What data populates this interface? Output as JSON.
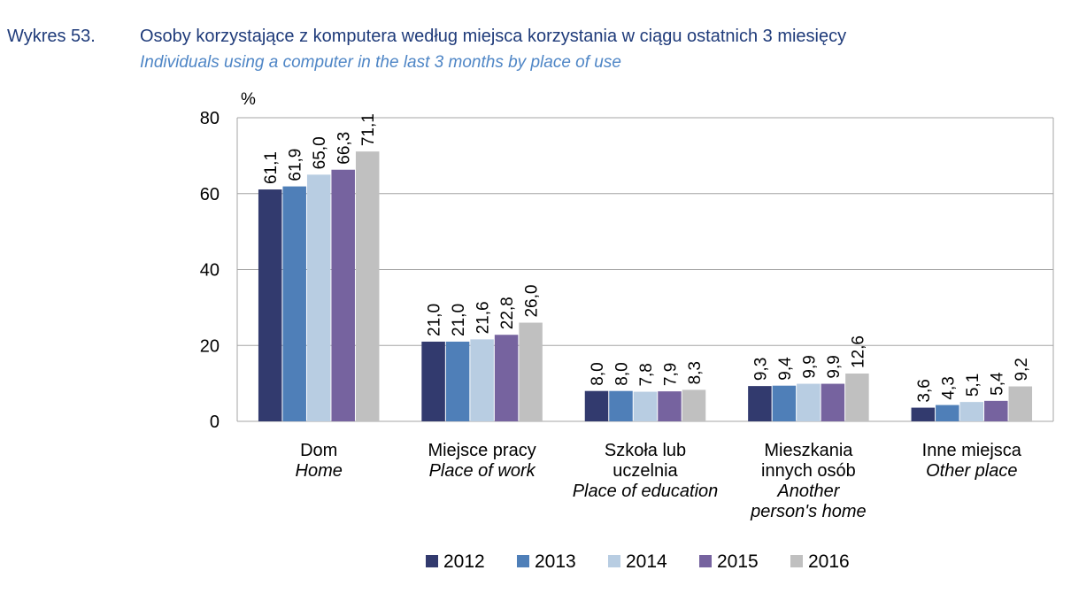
{
  "header": {
    "number": "Wykres 53.",
    "title": "Osoby korzystające z komputera według miejsca korzystania w ciągu ostatnich 3 miesięcy",
    "subtitle": "Individuals using a computer in the last 3 months by place of use"
  },
  "chart_data": {
    "type": "bar",
    "ylabel": "%",
    "ylim": [
      0,
      80
    ],
    "yticks": [
      "0",
      "20",
      "40",
      "60",
      "80"
    ],
    "grid": true,
    "legend_position": "bottom",
    "categories": [
      {
        "pl": [
          "Dom"
        ],
        "en": [
          "Home"
        ]
      },
      {
        "pl": [
          "Miejsce pracy"
        ],
        "en": [
          "Place of work"
        ]
      },
      {
        "pl": [
          "Szkoła lub",
          "uczelnia"
        ],
        "en": [
          "Place of education"
        ]
      },
      {
        "pl": [
          "Mieszkania",
          "innych osób"
        ],
        "en": [
          "Another",
          "person's home"
        ]
      },
      {
        "pl": [
          "Inne miejsca"
        ],
        "en": [
          "Other place"
        ]
      }
    ],
    "series": [
      {
        "name": "2012",
        "color": "#323a6e",
        "values": [
          61.1,
          21.0,
          8.0,
          9.3,
          3.6
        ],
        "labels": [
          "61,1",
          "21,0",
          "8,0",
          "9,3",
          "3,6"
        ]
      },
      {
        "name": "2013",
        "color": "#4f7fb8",
        "values": [
          61.9,
          21.0,
          8.0,
          9.4,
          4.3
        ],
        "labels": [
          "61,9",
          "21,0",
          "8,0",
          "9,4",
          "4,3"
        ]
      },
      {
        "name": "2014",
        "color": "#b8cde2",
        "values": [
          65.0,
          21.6,
          7.8,
          9.9,
          5.1
        ],
        "labels": [
          "65,0",
          "21,6",
          "7,8",
          "9,9",
          "5,1"
        ]
      },
      {
        "name": "2015",
        "color": "#76639f",
        "values": [
          66.3,
          22.8,
          7.9,
          9.9,
          5.4
        ],
        "labels": [
          "66,3",
          "22,8",
          "7,9",
          "9,9",
          "5,4"
        ]
      },
      {
        "name": "2016",
        "color": "#c0c0c0",
        "values": [
          71.1,
          26.0,
          8.3,
          12.6,
          9.2
        ],
        "labels": [
          "71,1",
          "26,0",
          "8,3",
          "12,6",
          "9,2"
        ]
      }
    ]
  }
}
